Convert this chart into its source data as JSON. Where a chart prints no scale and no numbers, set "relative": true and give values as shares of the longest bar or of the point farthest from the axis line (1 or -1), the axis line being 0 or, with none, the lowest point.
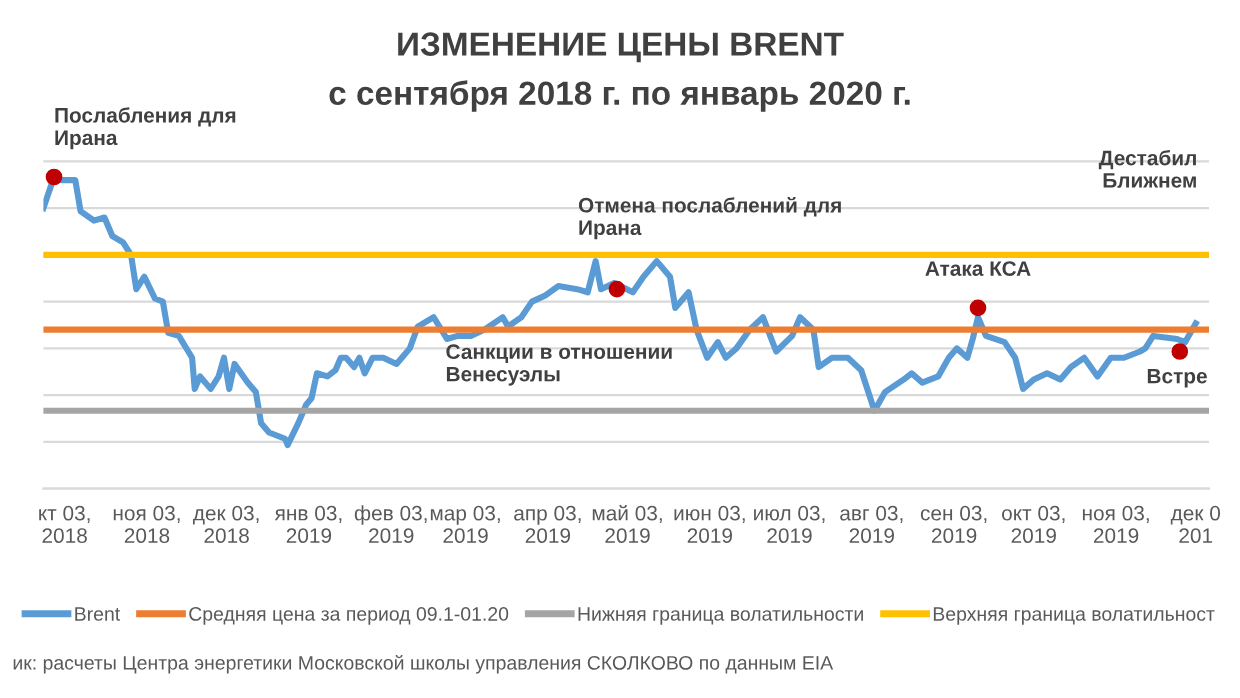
{
  "chart_data": {
    "type": "line",
    "title": "ИЗМЕНЕНИЕ ЦЕНЫ BRENT",
    "subtitle": "с сентября 2018 г. по январь 2020 г.",
    "relative": true,
    "grid": "y",
    "legend": "bottom",
    "xlim": [
      "2018-09-25",
      "2019-12-08"
    ],
    "xticks": [
      {
        "value": "2018-10-03",
        "label": "кт 03,\n2018"
      },
      {
        "value": "2018-11-03",
        "label": "ноя 03,\n2018"
      },
      {
        "value": "2018-12-03",
        "label": "дек 03,\n2018"
      },
      {
        "value": "2019-01-03",
        "label": "янв 03,\n2019"
      },
      {
        "value": "2019-02-03",
        "label": "фев 03,\n2019"
      },
      {
        "value": "2019-03-03",
        "label": "мар 03,\n2019"
      },
      {
        "value": "2019-04-03",
        "label": "апр 03,\n2019"
      },
      {
        "value": "2019-05-03",
        "label": "май 03,\n2019"
      },
      {
        "value": "2019-06-03",
        "label": "июн 03,\n2019"
      },
      {
        "value": "2019-07-03",
        "label": "июл 03,\n2019"
      },
      {
        "value": "2019-08-03",
        "label": "авг 03,\n2019"
      },
      {
        "value": "2019-09-03",
        "label": "сен 03,\n2019"
      },
      {
        "value": "2019-10-03",
        "label": "окт 03,\n2019"
      },
      {
        "value": "2019-11-03",
        "label": "ноя 03,\n2019"
      },
      {
        "value": "2019-12-03",
        "label": "дек 0\n201"
      }
    ],
    "series": [
      {
        "name": "Brent",
        "color": "#5b9bd5",
        "x": [
          "2018-09-25",
          "2018-09-29",
          "2018-10-02",
          "2018-10-07",
          "2018-10-09",
          "2018-10-14",
          "2018-10-18",
          "2018-10-21",
          "2018-10-25",
          "2018-10-28",
          "2018-10-30",
          "2018-11-02",
          "2018-11-06",
          "2018-11-09",
          "2018-11-11",
          "2018-11-15",
          "2018-11-20",
          "2018-11-21",
          "2018-11-23",
          "2018-11-27",
          "2018-11-30",
          "2018-12-02",
          "2018-12-04",
          "2018-12-06",
          "2018-12-11",
          "2018-12-14",
          "2018-12-16",
          "2018-12-19",
          "2018-12-25",
          "2018-12-26",
          "2018-12-30",
          "2019-01-02",
          "2019-01-04",
          "2019-01-06",
          "2019-01-10",
          "2019-01-13",
          "2019-01-15",
          "2019-01-17",
          "2019-01-20",
          "2019-01-22",
          "2019-01-24",
          "2019-01-27",
          "2019-01-31",
          "2019-02-05",
          "2019-02-07",
          "2019-02-10",
          "2019-02-13",
          "2019-02-19",
          "2019-02-24",
          "2019-02-28",
          "2019-03-05",
          "2019-03-10",
          "2019-03-17",
          "2019-03-19",
          "2019-03-24",
          "2019-03-28",
          "2019-04-02",
          "2019-04-07",
          "2019-04-14",
          "2019-04-18",
          "2019-04-21",
          "2019-04-23",
          "2019-04-28",
          "2019-05-05",
          "2019-05-09",
          "2019-05-14",
          "2019-05-19",
          "2019-05-21",
          "2019-05-26",
          "2019-05-29",
          "2019-06-02",
          "2019-06-06",
          "2019-06-09",
          "2019-06-13",
          "2019-06-18",
          "2019-06-23",
          "2019-06-28",
          "2019-07-04",
          "2019-07-07",
          "2019-07-12",
          "2019-07-14",
          "2019-07-19",
          "2019-07-25",
          "2019-07-30",
          "2019-08-04",
          "2019-08-08",
          "2019-08-15",
          "2019-08-18",
          "2019-08-22",
          "2019-08-28",
          "2019-09-01",
          "2019-09-04",
          "2019-09-08",
          "2019-09-10",
          "2019-09-12",
          "2019-09-15",
          "2019-09-22",
          "2019-09-26",
          "2019-09-29",
          "2019-10-03",
          "2019-10-08",
          "2019-10-13",
          "2019-10-17",
          "2019-10-22",
          "2019-10-27",
          "2019-11-01",
          "2019-11-06",
          "2019-11-12",
          "2019-11-14",
          "2019-11-17",
          "2019-11-26",
          "2019-11-29",
          "2019-12-03"
        ],
        "values": [
          0.9,
          1.0,
          0.99,
          0.99,
          0.89,
          0.86,
          0.87,
          0.81,
          0.79,
          0.75,
          0.64,
          0.68,
          0.61,
          0.6,
          0.5,
          0.49,
          0.42,
          0.32,
          0.36,
          0.32,
          0.36,
          0.42,
          0.32,
          0.4,
          0.34,
          0.31,
          0.21,
          0.18,
          0.16,
          0.14,
          0.21,
          0.27,
          0.29,
          0.37,
          0.36,
          0.38,
          0.42,
          0.42,
          0.39,
          0.42,
          0.37,
          0.42,
          0.42,
          0.4,
          0.42,
          0.45,
          0.52,
          0.55,
          0.48,
          0.49,
          0.49,
          0.51,
          0.55,
          0.52,
          0.55,
          0.6,
          0.62,
          0.65,
          0.64,
          0.63,
          0.73,
          0.64,
          0.66,
          0.63,
          0.68,
          0.73,
          0.68,
          0.58,
          0.63,
          0.51,
          0.42,
          0.47,
          0.42,
          0.45,
          0.51,
          0.55,
          0.44,
          0.49,
          0.55,
          0.51,
          0.39,
          0.42,
          0.42,
          0.38,
          0.25,
          0.31,
          0.35,
          0.37,
          0.34,
          0.36,
          0.42,
          0.45,
          0.42,
          0.48,
          0.55,
          0.49,
          0.47,
          0.42,
          0.32,
          0.35,
          0.37,
          0.35,
          0.39,
          0.42,
          0.36,
          0.42,
          0.42,
          0.44,
          0.45,
          0.49,
          0.48,
          0.47,
          0.53
        ]
      },
      {
        "name": "Средняя цена за период 09.1-01.20",
        "color": "#ed7d31",
        "x": [
          "2018-09-25",
          "2019-12-08"
        ],
        "values": [
          0.51,
          0.51
        ]
      },
      {
        "name": "Нижняя граница волатильности",
        "color": "#a5a5a5",
        "x": [
          "2018-09-25",
          "2019-12-08"
        ],
        "values": [
          0.25,
          0.25
        ]
      },
      {
        "name": "Верхняя граница волатильност",
        "color": "#ffc000",
        "x": [
          "2018-09-25",
          "2019-12-08"
        ],
        "values": [
          0.75,
          0.75
        ]
      }
    ],
    "annotations": [
      {
        "text": "Послабления для\nИрана",
        "x": "2018-09-29",
        "y": 1.0
      },
      {
        "text": "Отмена послаблений для\nИрана",
        "x": "2019-04-29",
        "y": 0.64
      },
      {
        "text": "Атака КСА",
        "x": "2019-09-12",
        "y": 0.58
      },
      {
        "text": "Встре",
        "x": "2019-11-27",
        "y": 0.44
      },
      "Санкции в отношении\nВенесуэлы",
      "Дестабил\nБлижнем",
      "ик: расчеты Центра энергетики Московской школы управления СКОЛКОВО по данным EIA"
    ]
  }
}
